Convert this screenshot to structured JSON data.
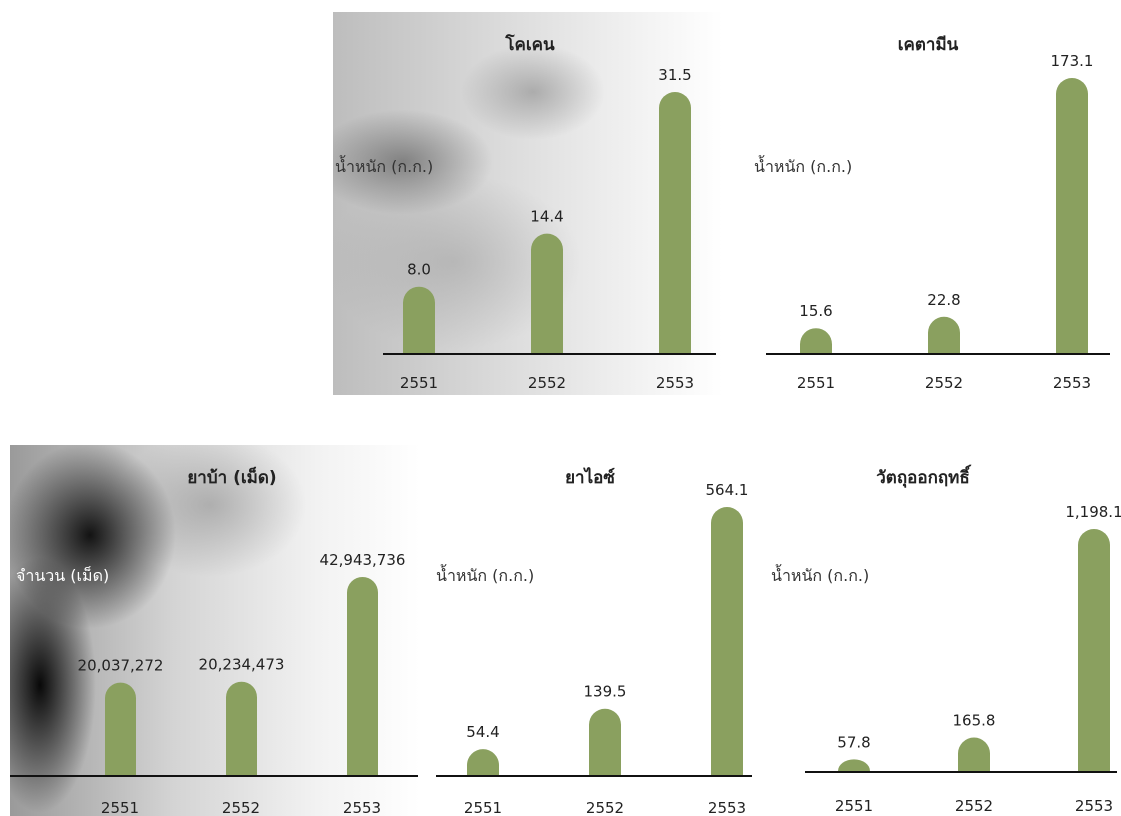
{
  "chart_data": [
    {
      "type": "bar",
      "title": "โคเคน",
      "ylabel": "น้ำหนัก (ก.ก.)",
      "categories": [
        "2551",
        "2552",
        "2553"
      ],
      "values": [
        8.0,
        14.4,
        31.5
      ],
      "value_labels": [
        "8.0",
        "14.4",
        "31.5"
      ],
      "ylim": [
        0,
        31.5
      ],
      "grid": false,
      "bar_color": "#8aa05f"
    },
    {
      "type": "bar",
      "title": "เคตามีน",
      "ylabel": "น้ำหนัก (ก.ก.)",
      "categories": [
        "2551",
        "2552",
        "2553"
      ],
      "values": [
        15.6,
        22.8,
        173.1
      ],
      "value_labels": [
        "15.6",
        "22.8",
        "173.1"
      ],
      "ylim": [
        0,
        173.1
      ],
      "grid": false,
      "bar_color": "#8aa05f"
    },
    {
      "type": "bar",
      "title": "ยาบ้า (เม็ด)",
      "ylabel": "จำนวน (เม็ด)",
      "categories": [
        "2551",
        "2552",
        "2553"
      ],
      "values": [
        20037272,
        20234473,
        42943736
      ],
      "value_labels": [
        "20,037,272",
        "20,234,473",
        "42,943,736"
      ],
      "ylim": [
        0,
        42943736
      ],
      "grid": false,
      "bar_color": "#8aa05f"
    },
    {
      "type": "bar",
      "title": "ยาไอซ์",
      "ylabel": "น้ำหนัก (ก.ก.)",
      "categories": [
        "2551",
        "2552",
        "2553"
      ],
      "values": [
        54.4,
        139.5,
        564.1
      ],
      "value_labels": [
        "54.4",
        "139.5",
        "564.1"
      ],
      "ylim": [
        0,
        564.1
      ],
      "grid": false,
      "bar_color": "#8aa05f"
    },
    {
      "type": "bar",
      "title": "วัตถุออกฤทธิ์",
      "ylabel": "น้ำหนัก (ก.ก.)",
      "categories": [
        "2551",
        "2552",
        "2553"
      ],
      "values": [
        57.8,
        165.8,
        1198.1
      ],
      "value_labels": [
        "57.8",
        "165.8",
        "1,198.1"
      ],
      "ylim": [
        0,
        1198.1
      ],
      "grid": false,
      "bar_color": "#8aa05f"
    }
  ]
}
